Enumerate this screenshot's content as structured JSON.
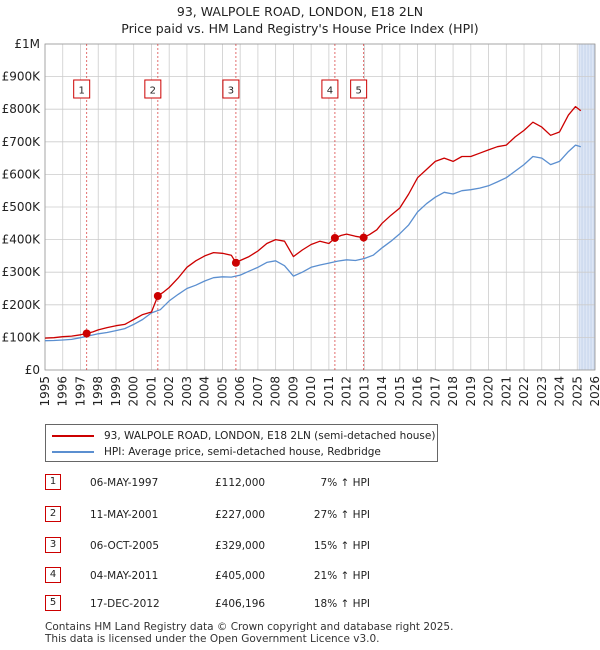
{
  "title": {
    "line1": "93, WALPOLE ROAD, LONDON, E18 2LN",
    "line2": "Price paid vs. HM Land Registry's House Price Index (HPI)"
  },
  "colors": {
    "property": "#cc0000",
    "hpi": "#5b8fd0",
    "shade": "#dde6f5",
    "grid": "#cccccc",
    "marker": "#cc0000"
  },
  "chart_data": {
    "type": "line",
    "title": "Price paid vs. HM Land Registry's House Price Index (HPI)",
    "xlim": [
      1995,
      2026
    ],
    "ylim": [
      0,
      1000000
    ],
    "x_ticks": [
      "1995",
      "1996",
      "1997",
      "1998",
      "1999",
      "2000",
      "2001",
      "2002",
      "2003",
      "2004",
      "2005",
      "2006",
      "2007",
      "2008",
      "2009",
      "2010",
      "2011",
      "2012",
      "2013",
      "2014",
      "2015",
      "2016",
      "2017",
      "2018",
      "2019",
      "2020",
      "2021",
      "2022",
      "2023",
      "2024",
      "2025",
      "2026"
    ],
    "y_ticks": [
      {
        "value": 0,
        "label": "£0"
      },
      {
        "value": 100000,
        "label": "£100K"
      },
      {
        "value": 200000,
        "label": "£200K"
      },
      {
        "value": 300000,
        "label": "£300K"
      },
      {
        "value": 400000,
        "label": "£400K"
      },
      {
        "value": 500000,
        "label": "£500K"
      },
      {
        "value": 600000,
        "label": "£600K"
      },
      {
        "value": 700000,
        "label": "£700K"
      },
      {
        "value": 800000,
        "label": "£800K"
      },
      {
        "value": 900000,
        "label": "£900K"
      },
      {
        "value": 1000000,
        "label": "£1M"
      }
    ],
    "shaded_range": [
      2025.1,
      2026
    ],
    "series": [
      {
        "name": "93, WALPOLE ROAD, LONDON, E18 2LN (semi-detached house)",
        "color": "#cc0000",
        "points": [
          [
            1995,
            98000
          ],
          [
            1995.5,
            99000
          ],
          [
            1996,
            102000
          ],
          [
            1996.5,
            104000
          ],
          [
            1997,
            108000
          ],
          [
            1997.35,
            112000
          ],
          [
            1997.7,
            117000
          ],
          [
            1998,
            123000
          ],
          [
            1998.5,
            130000
          ],
          [
            1999,
            136000
          ],
          [
            1999.5,
            140000
          ],
          [
            2000,
            155000
          ],
          [
            2000.5,
            170000
          ],
          [
            2001,
            178000
          ],
          [
            2001.36,
            227000
          ],
          [
            2001.7,
            240000
          ],
          [
            2002,
            253000
          ],
          [
            2002.5,
            282000
          ],
          [
            2003,
            315000
          ],
          [
            2003.5,
            335000
          ],
          [
            2004,
            350000
          ],
          [
            2004.5,
            360000
          ],
          [
            2005,
            358000
          ],
          [
            2005.5,
            352000
          ],
          [
            2005.76,
            329000
          ],
          [
            2006,
            336000
          ],
          [
            2006.5,
            348000
          ],
          [
            2007,
            365000
          ],
          [
            2007.5,
            388000
          ],
          [
            2008,
            400000
          ],
          [
            2008.5,
            395000
          ],
          [
            2009,
            348000
          ],
          [
            2009.5,
            368000
          ],
          [
            2010,
            385000
          ],
          [
            2010.5,
            395000
          ],
          [
            2011,
            388000
          ],
          [
            2011.34,
            405000
          ],
          [
            2011.7,
            413000
          ],
          [
            2012,
            417000
          ],
          [
            2012.5,
            410000
          ],
          [
            2012.96,
            406196
          ],
          [
            2013.3,
            416000
          ],
          [
            2013.7,
            430000
          ],
          [
            2014,
            450000
          ],
          [
            2014.5,
            475000
          ],
          [
            2015,
            497000
          ],
          [
            2015.5,
            540000
          ],
          [
            2016,
            590000
          ],
          [
            2016.5,
            615000
          ],
          [
            2017,
            640000
          ],
          [
            2017.5,
            650000
          ],
          [
            2018,
            640000
          ],
          [
            2018.5,
            655000
          ],
          [
            2019,
            655000
          ],
          [
            2019.5,
            665000
          ],
          [
            2020,
            675000
          ],
          [
            2020.5,
            685000
          ],
          [
            2021,
            690000
          ],
          [
            2021.5,
            715000
          ],
          [
            2022,
            735000
          ],
          [
            2022.5,
            760000
          ],
          [
            2023,
            745000
          ],
          [
            2023.5,
            720000
          ],
          [
            2024,
            730000
          ],
          [
            2024.5,
            782000
          ],
          [
            2024.9,
            808000
          ],
          [
            2025.2,
            795000
          ]
        ]
      },
      {
        "name": "HPI: Average price, semi-detached house, Redbridge",
        "color": "#5b8fd0",
        "points": [
          [
            1995,
            90000
          ],
          [
            1995.5,
            90500
          ],
          [
            1996,
            92000
          ],
          [
            1996.5,
            94000
          ],
          [
            1997,
            99000
          ],
          [
            1997.5,
            105000
          ],
          [
            1998,
            111000
          ],
          [
            1998.5,
            115000
          ],
          [
            1999,
            121000
          ],
          [
            1999.5,
            127000
          ],
          [
            2000,
            140000
          ],
          [
            2000.5,
            155000
          ],
          [
            2001,
            175000
          ],
          [
            2001.5,
            185000
          ],
          [
            2002,
            212000
          ],
          [
            2002.5,
            232000
          ],
          [
            2003,
            250000
          ],
          [
            2003.5,
            260000
          ],
          [
            2004,
            273000
          ],
          [
            2004.5,
            283000
          ],
          [
            2005,
            286000
          ],
          [
            2005.5,
            285000
          ],
          [
            2006,
            291000
          ],
          [
            2006.5,
            303000
          ],
          [
            2007,
            315000
          ],
          [
            2007.5,
            330000
          ],
          [
            2008,
            335000
          ],
          [
            2008.5,
            320000
          ],
          [
            2009,
            288000
          ],
          [
            2009.5,
            300000
          ],
          [
            2010,
            315000
          ],
          [
            2010.5,
            322000
          ],
          [
            2011,
            328000
          ],
          [
            2011.5,
            334000
          ],
          [
            2012,
            338000
          ],
          [
            2012.5,
            336000
          ],
          [
            2013,
            342000
          ],
          [
            2013.5,
            352000
          ],
          [
            2014,
            375000
          ],
          [
            2014.5,
            395000
          ],
          [
            2015,
            418000
          ],
          [
            2015.5,
            445000
          ],
          [
            2016,
            485000
          ],
          [
            2016.5,
            510000
          ],
          [
            2017,
            530000
          ],
          [
            2017.5,
            545000
          ],
          [
            2018,
            540000
          ],
          [
            2018.5,
            550000
          ],
          [
            2019,
            553000
          ],
          [
            2019.5,
            558000
          ],
          [
            2020,
            565000
          ],
          [
            2020.5,
            577000
          ],
          [
            2021,
            590000
          ],
          [
            2021.5,
            610000
          ],
          [
            2022,
            630000
          ],
          [
            2022.5,
            655000
          ],
          [
            2023,
            650000
          ],
          [
            2023.5,
            630000
          ],
          [
            2024,
            640000
          ],
          [
            2024.5,
            670000
          ],
          [
            2024.9,
            690000
          ],
          [
            2025.2,
            685000
          ]
        ]
      }
    ],
    "transactions": [
      {
        "num": "1",
        "x": 1997.35,
        "value": 112000
      },
      {
        "num": "2",
        "x": 2001.36,
        "value": 227000
      },
      {
        "num": "3",
        "x": 2005.76,
        "value": 329000
      },
      {
        "num": "4",
        "x": 2011.34,
        "value": 405000
      },
      {
        "num": "5",
        "x": 2012.96,
        "value": 406196
      }
    ]
  },
  "legend": {
    "property_label": "93, WALPOLE ROAD, LONDON, E18 2LN (semi-detached house)",
    "hpi_label": "HPI: Average price, semi-detached house, Redbridge"
  },
  "table": [
    {
      "num": "1",
      "date": "06-MAY-1997",
      "price": "£112,000",
      "pct": "7% ↑ HPI"
    },
    {
      "num": "2",
      "date": "11-MAY-2001",
      "price": "£227,000",
      "pct": "27% ↑ HPI"
    },
    {
      "num": "3",
      "date": "06-OCT-2005",
      "price": "£329,000",
      "pct": "15% ↑ HPI"
    },
    {
      "num": "4",
      "date": "04-MAY-2011",
      "price": "£405,000",
      "pct": "21% ↑ HPI"
    },
    {
      "num": "5",
      "date": "17-DEC-2012",
      "price": "£406,196",
      "pct": "18% ↑ HPI"
    }
  ],
  "footer": {
    "line1": "Contains HM Land Registry data © Crown copyright and database right 2025.",
    "line2": "This data is licensed under the Open Government Licence v3.0."
  }
}
